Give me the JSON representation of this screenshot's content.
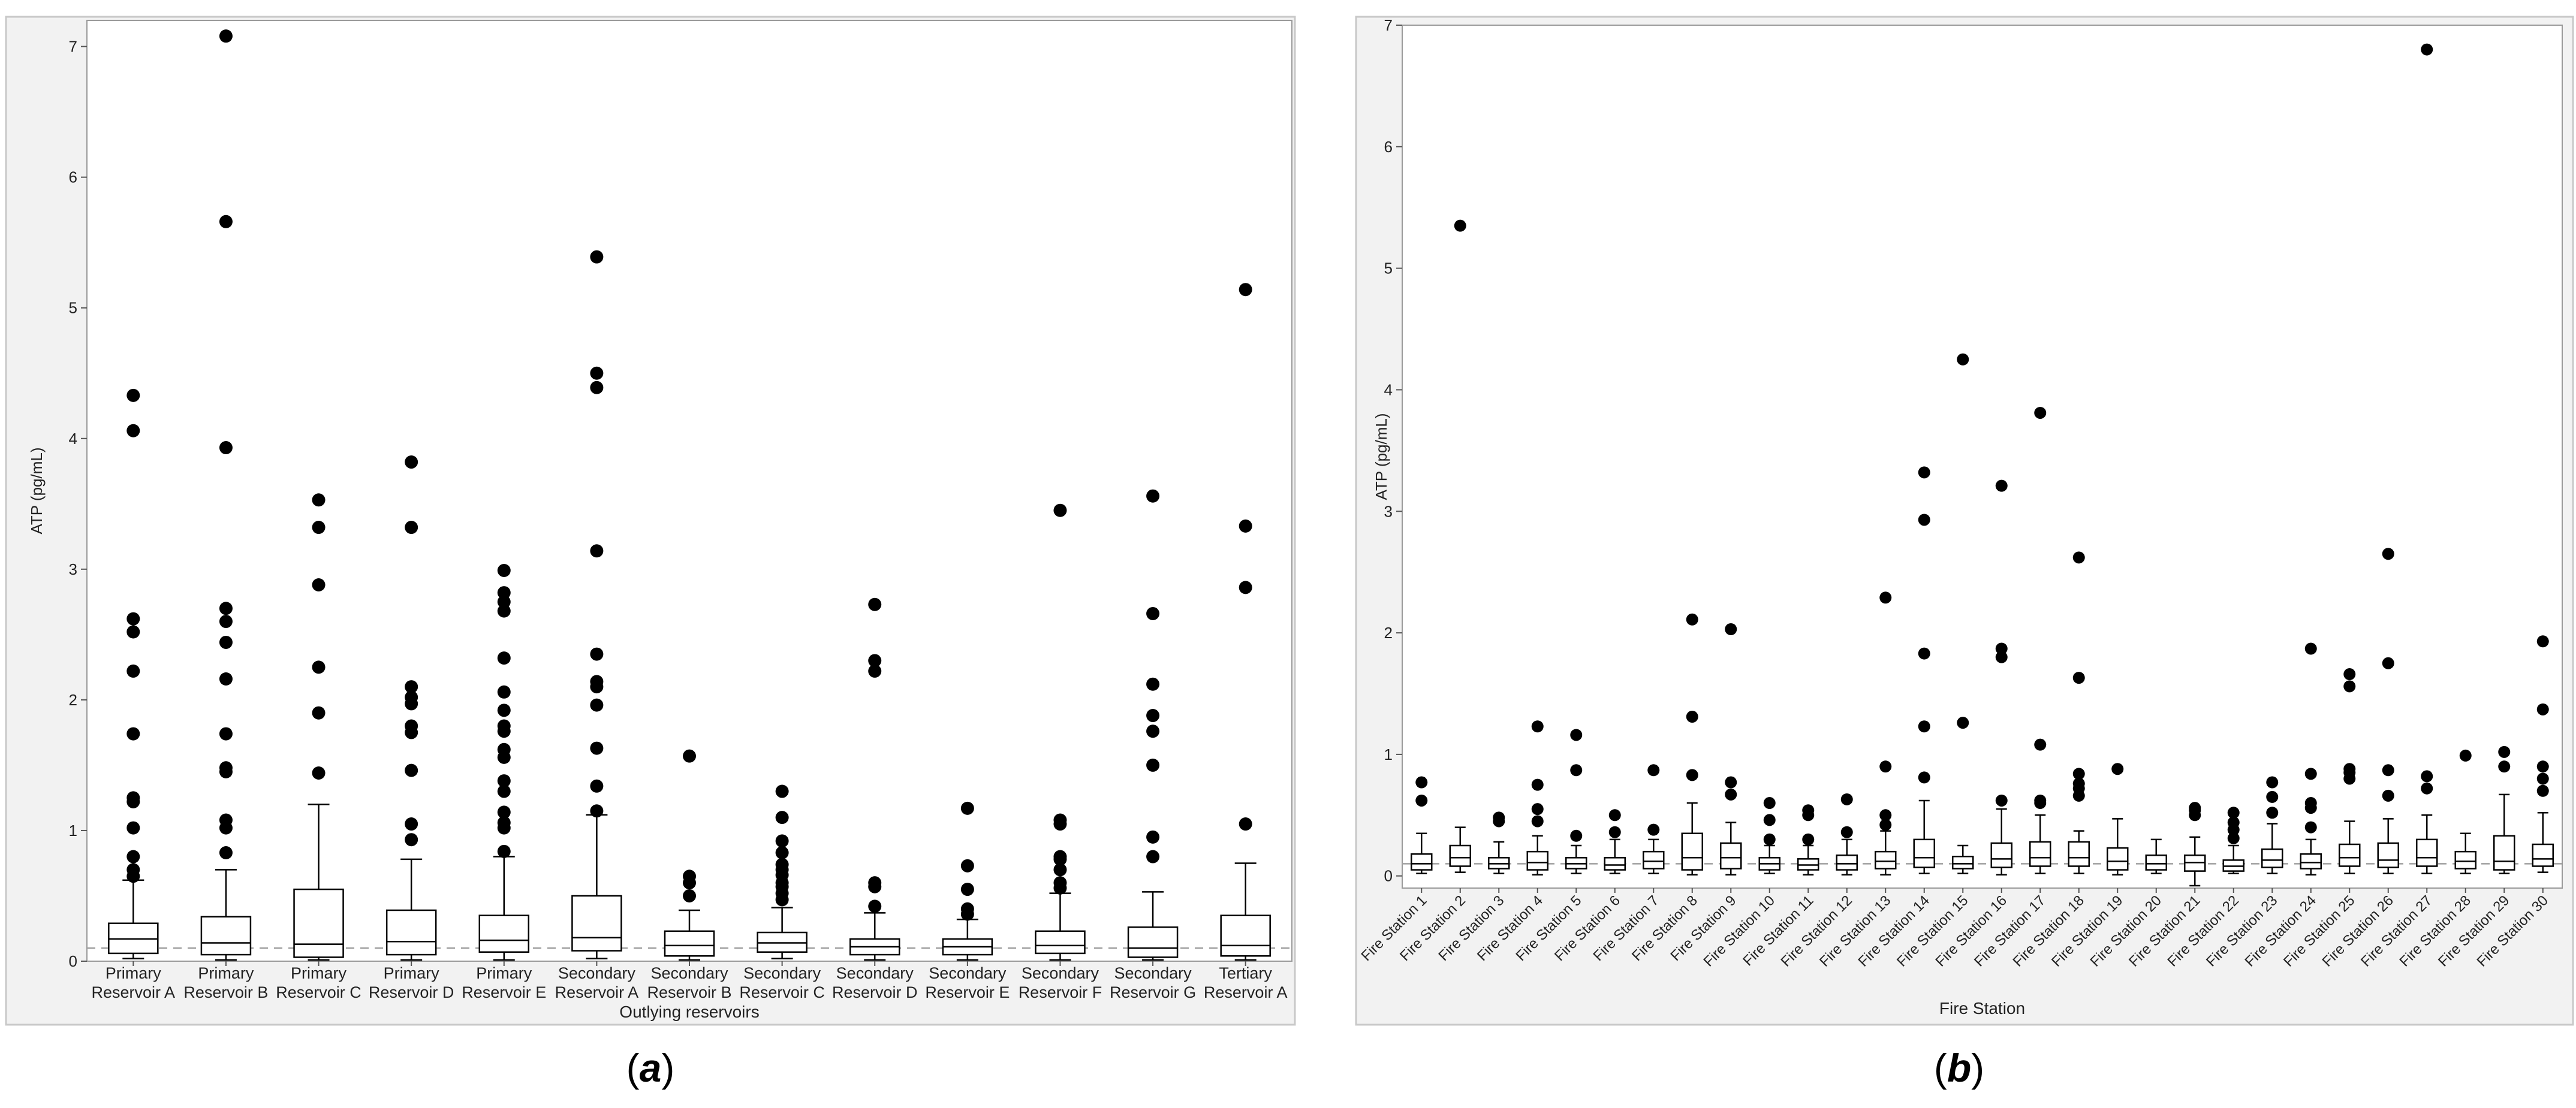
{
  "panels": [
    {
      "caption_letter": "a",
      "y_label": "ATP (pg/mL)",
      "x_label": "Outlying reservoirs",
      "y_ticks": [
        "0",
        "1",
        "2",
        "3",
        "4",
        "5",
        "6",
        "7"
      ],
      "colors": {
        "frame": "#c8c8c8",
        "panel_bg": "#f2f2f2",
        "plot_bg": "#ffffff",
        "reference_line": "#a0a0a0",
        "box": "#000000"
      }
    },
    {
      "caption_letter": "b",
      "y_label": "ATP (pg/mL)",
      "x_label": "Fire Station",
      "y_ticks": [
        "0",
        "1",
        "2",
        "3",
        "4",
        "5",
        "6",
        "7"
      ],
      "colors": {
        "frame": "#c8c8c8",
        "panel_bg": "#f2f2f2",
        "plot_bg": "#ffffff",
        "reference_line": "#a0a0a0",
        "box": "#000000"
      }
    }
  ],
  "chart_data": [
    {
      "type": "box",
      "x_label": "Outlying reservoirs",
      "y_label": "ATP (pg/mL)",
      "ylim": [
        0,
        7.2
      ],
      "reference_line_y": 0.1,
      "grid": false,
      "groups": [
        {
          "label": [
            "Primary",
            "Reservoir A"
          ],
          "min": 0.02,
          "q1": 0.06,
          "median": 0.17,
          "q3": 0.29,
          "max": 0.62,
          "outliers": [
            0.65,
            0.7,
            0.8,
            1.02,
            1.22,
            1.25,
            1.74,
            2.22,
            2.52,
            2.62,
            4.06,
            4.33
          ]
        },
        {
          "label": [
            "Primary",
            "Reservoir B"
          ],
          "min": 0.01,
          "q1": 0.05,
          "median": 0.14,
          "q3": 0.34,
          "max": 0.7,
          "outliers": [
            0.83,
            1.02,
            1.08,
            1.45,
            1.48,
            1.74,
            2.16,
            2.44,
            2.6,
            2.7,
            3.93,
            5.66,
            7.08
          ]
        },
        {
          "label": [
            "Primary",
            "Reservoir C"
          ],
          "min": 0.01,
          "q1": 0.03,
          "median": 0.13,
          "q3": 0.55,
          "max": 1.2,
          "outliers": [
            1.44,
            1.9,
            2.25,
            2.88,
            3.32,
            3.53
          ]
        },
        {
          "label": [
            "Primary",
            "Reservoir D"
          ],
          "min": 0.01,
          "q1": 0.05,
          "median": 0.15,
          "q3": 0.39,
          "max": 0.78,
          "outliers": [
            0.93,
            1.05,
            1.46,
            1.75,
            1.8,
            1.97,
            2.02,
            2.1,
            3.32,
            3.82
          ]
        },
        {
          "label": [
            "Primary",
            "Reservoir E"
          ],
          "min": 0.01,
          "q1": 0.07,
          "median": 0.16,
          "q3": 0.35,
          "max": 0.8,
          "outliers": [
            0.84,
            1.02,
            1.06,
            1.14,
            1.3,
            1.38,
            1.56,
            1.62,
            1.76,
            1.8,
            1.92,
            2.06,
            2.32,
            2.68,
            2.75,
            2.82,
            2.99
          ]
        },
        {
          "label": [
            "Secondary",
            "Reservoir A"
          ],
          "min": 0.02,
          "q1": 0.08,
          "median": 0.18,
          "q3": 0.5,
          "max": 1.12,
          "outliers": [
            1.15,
            1.34,
            1.63,
            1.96,
            2.1,
            2.14,
            2.35,
            3.14,
            4.39,
            4.5,
            5.39
          ]
        },
        {
          "label": [
            "Secondary",
            "Reservoir B"
          ],
          "min": 0.01,
          "q1": 0.04,
          "median": 0.12,
          "q3": 0.23,
          "max": 0.39,
          "outliers": [
            0.5,
            0.6,
            0.65,
            1.57
          ]
        },
        {
          "label": [
            "Secondary",
            "Reservoir C"
          ],
          "min": 0.02,
          "q1": 0.07,
          "median": 0.14,
          "q3": 0.22,
          "max": 0.41,
          "outliers": [
            0.47,
            0.52,
            0.57,
            0.6,
            0.66,
            0.7,
            0.74,
            0.83,
            0.92,
            1.1,
            1.3
          ]
        },
        {
          "label": [
            "Secondary",
            "Reservoir D"
          ],
          "min": 0.01,
          "q1": 0.05,
          "median": 0.11,
          "q3": 0.17,
          "max": 0.37,
          "outliers": [
            0.42,
            0.57,
            0.6,
            2.22,
            2.3,
            2.73
          ]
        },
        {
          "label": [
            "Secondary",
            "Reservoir E"
          ],
          "min": 0.01,
          "q1": 0.05,
          "median": 0.11,
          "q3": 0.17,
          "max": 0.32,
          "outliers": [
            0.36,
            0.4,
            0.55,
            0.73,
            1.17
          ]
        },
        {
          "label": [
            "Secondary",
            "Reservoir F"
          ],
          "min": 0.01,
          "q1": 0.06,
          "median": 0.12,
          "q3": 0.23,
          "max": 0.52,
          "outliers": [
            0.56,
            0.6,
            0.7,
            0.78,
            0.8,
            1.05,
            1.08,
            3.45
          ]
        },
        {
          "label": [
            "Secondary",
            "Reservoir G"
          ],
          "min": 0.01,
          "q1": 0.03,
          "median": 0.1,
          "q3": 0.26,
          "max": 0.53,
          "outliers": [
            0.8,
            0.95,
            1.5,
            1.76,
            1.88,
            2.12,
            2.66,
            3.56
          ]
        },
        {
          "label": [
            "Tertiary",
            "Reservoir A"
          ],
          "min": 0.01,
          "q1": 0.04,
          "median": 0.12,
          "q3": 0.35,
          "max": 0.75,
          "outliers": [
            1.05,
            2.86,
            3.33,
            5.14
          ]
        }
      ]
    },
    {
      "type": "box",
      "x_label": "Fire Station",
      "y_label": "ATP (pg/mL)",
      "ylim": [
        -0.1,
        7
      ],
      "reference_line_y": 0.1,
      "grid": false,
      "groups": [
        {
          "label": "Fire Station 1",
          "min": 0.02,
          "q1": 0.05,
          "median": 0.1,
          "q3": 0.18,
          "max": 0.35,
          "outliers": [
            0.62,
            0.77
          ]
        },
        {
          "label": "Fire Station 2",
          "min": 0.03,
          "q1": 0.08,
          "median": 0.15,
          "q3": 0.25,
          "max": 0.4,
          "outliers": [
            5.35
          ]
        },
        {
          "label": "Fire Station 3",
          "min": 0.02,
          "q1": 0.06,
          "median": 0.1,
          "q3": 0.15,
          "max": 0.28,
          "outliers": [
            0.45,
            0.48
          ]
        },
        {
          "label": "Fire Station 4",
          "min": 0.01,
          "q1": 0.05,
          "median": 0.11,
          "q3": 0.2,
          "max": 0.33,
          "outliers": [
            0.45,
            0.55,
            0.75,
            1.23
          ]
        },
        {
          "label": "Fire Station 5",
          "min": 0.02,
          "q1": 0.06,
          "median": 0.1,
          "q3": 0.15,
          "max": 0.25,
          "outliers": [
            0.33,
            0.87,
            1.16
          ]
        },
        {
          "label": "Fire Station 6",
          "min": 0.02,
          "q1": 0.05,
          "median": 0.09,
          "q3": 0.15,
          "max": 0.3,
          "outliers": [
            0.36,
            0.5
          ]
        },
        {
          "label": "Fire Station 7",
          "min": 0.02,
          "q1": 0.06,
          "median": 0.12,
          "q3": 0.2,
          "max": 0.3,
          "outliers": [
            0.38,
            0.87
          ]
        },
        {
          "label": "Fire Station 8",
          "min": 0.01,
          "q1": 0.05,
          "median": 0.15,
          "q3": 0.35,
          "max": 0.6,
          "outliers": [
            0.83,
            1.31,
            2.11
          ]
        },
        {
          "label": "Fire Station 9",
          "min": 0.01,
          "q1": 0.06,
          "median": 0.15,
          "q3": 0.27,
          "max": 0.44,
          "outliers": [
            0.67,
            0.77,
            2.03
          ]
        },
        {
          "label": "Fire Station 10",
          "min": 0.02,
          "q1": 0.05,
          "median": 0.1,
          "q3": 0.15,
          "max": 0.25,
          "outliers": [
            0.3,
            0.46,
            0.6
          ]
        },
        {
          "label": "Fire Station 11",
          "min": 0.01,
          "q1": 0.05,
          "median": 0.09,
          "q3": 0.14,
          "max": 0.25,
          "outliers": [
            0.3,
            0.5,
            0.54
          ]
        },
        {
          "label": "Fire Station 12",
          "min": 0.01,
          "q1": 0.05,
          "median": 0.1,
          "q3": 0.17,
          "max": 0.3,
          "outliers": [
            0.36,
            0.63
          ]
        },
        {
          "label": "Fire Station 13",
          "min": 0.01,
          "q1": 0.06,
          "median": 0.12,
          "q3": 0.2,
          "max": 0.37,
          "outliers": [
            0.42,
            0.5,
            0.9,
            2.29
          ]
        },
        {
          "label": "Fire Station 14",
          "min": 0.02,
          "q1": 0.07,
          "median": 0.15,
          "q3": 0.3,
          "max": 0.62,
          "outliers": [
            0.81,
            1.23,
            1.83,
            2.93,
            3.32
          ]
        },
        {
          "label": "Fire Station 15",
          "min": 0.02,
          "q1": 0.06,
          "median": 0.1,
          "q3": 0.16,
          "max": 0.25,
          "outliers": [
            1.26,
            4.25
          ]
        },
        {
          "label": "Fire Station 16",
          "min": 0.01,
          "q1": 0.07,
          "median": 0.14,
          "q3": 0.27,
          "max": 0.55,
          "outliers": [
            0.62,
            1.8,
            1.87,
            3.21
          ]
        },
        {
          "label": "Fire Station 17",
          "min": 0.02,
          "q1": 0.08,
          "median": 0.15,
          "q3": 0.28,
          "max": 0.5,
          "outliers": [
            0.6,
            0.62,
            1.08,
            3.81
          ]
        },
        {
          "label": "Fire Station 18",
          "min": 0.02,
          "q1": 0.08,
          "median": 0.15,
          "q3": 0.28,
          "max": 0.37,
          "outliers": [
            0.66,
            0.72,
            0.76,
            0.84,
            1.63,
            2.62
          ]
        },
        {
          "label": "Fire Station 19",
          "min": 0.01,
          "q1": 0.05,
          "median": 0.12,
          "q3": 0.23,
          "max": 0.47,
          "outliers": [
            0.88
          ]
        },
        {
          "label": "Fire Station 20",
          "min": 0.02,
          "q1": 0.05,
          "median": 0.1,
          "q3": 0.17,
          "max": 0.3
        },
        {
          "label": "Fire Station 21",
          "min": -0.08,
          "q1": 0.04,
          "median": 0.11,
          "q3": 0.17,
          "max": 0.32,
          "outliers": [
            0.5,
            0.54,
            0.56
          ]
        },
        {
          "label": "Fire Station 22",
          "min": 0.02,
          "q1": 0.04,
          "median": 0.08,
          "q3": 0.13,
          "max": 0.25,
          "outliers": [
            0.31,
            0.38,
            0.44,
            0.52
          ]
        },
        {
          "label": "Fire Station 23",
          "min": 0.02,
          "q1": 0.07,
          "median": 0.13,
          "q3": 0.22,
          "max": 0.43,
          "outliers": [
            0.52,
            0.65,
            0.77
          ]
        },
        {
          "label": "Fire Station 24",
          "min": 0.01,
          "q1": 0.06,
          "median": 0.11,
          "q3": 0.18,
          "max": 0.3,
          "outliers": [
            0.4,
            0.56,
            0.6,
            0.84,
            1.87
          ]
        },
        {
          "label": "Fire Station 25",
          "min": 0.02,
          "q1": 0.08,
          "median": 0.15,
          "q3": 0.26,
          "max": 0.45,
          "outliers": [
            0.8,
            0.85,
            0.88,
            1.56,
            1.66
          ]
        },
        {
          "label": "Fire Station 26",
          "min": 0.02,
          "q1": 0.07,
          "median": 0.13,
          "q3": 0.27,
          "max": 0.47,
          "outliers": [
            0.66,
            0.87,
            1.75,
            2.65
          ]
        },
        {
          "label": "Fire Station 27",
          "min": 0.02,
          "q1": 0.08,
          "median": 0.15,
          "q3": 0.3,
          "max": 0.5,
          "outliers": [
            0.72,
            0.82,
            6.8
          ]
        },
        {
          "label": "Fire Station 28",
          "min": 0.02,
          "q1": 0.06,
          "median": 0.12,
          "q3": 0.2,
          "max": 0.35,
          "outliers": [
            0.99
          ]
        },
        {
          "label": "Fire Station 29",
          "min": 0.02,
          "q1": 0.05,
          "median": 0.12,
          "q3": 0.33,
          "max": 0.67,
          "outliers": [
            0.9,
            1.02
          ]
        },
        {
          "label": "Fire Station 30",
          "min": 0.03,
          "q1": 0.08,
          "median": 0.14,
          "q3": 0.26,
          "max": 0.52,
          "outliers": [
            0.7,
            0.8,
            0.9,
            1.37,
            1.93
          ]
        }
      ]
    }
  ]
}
